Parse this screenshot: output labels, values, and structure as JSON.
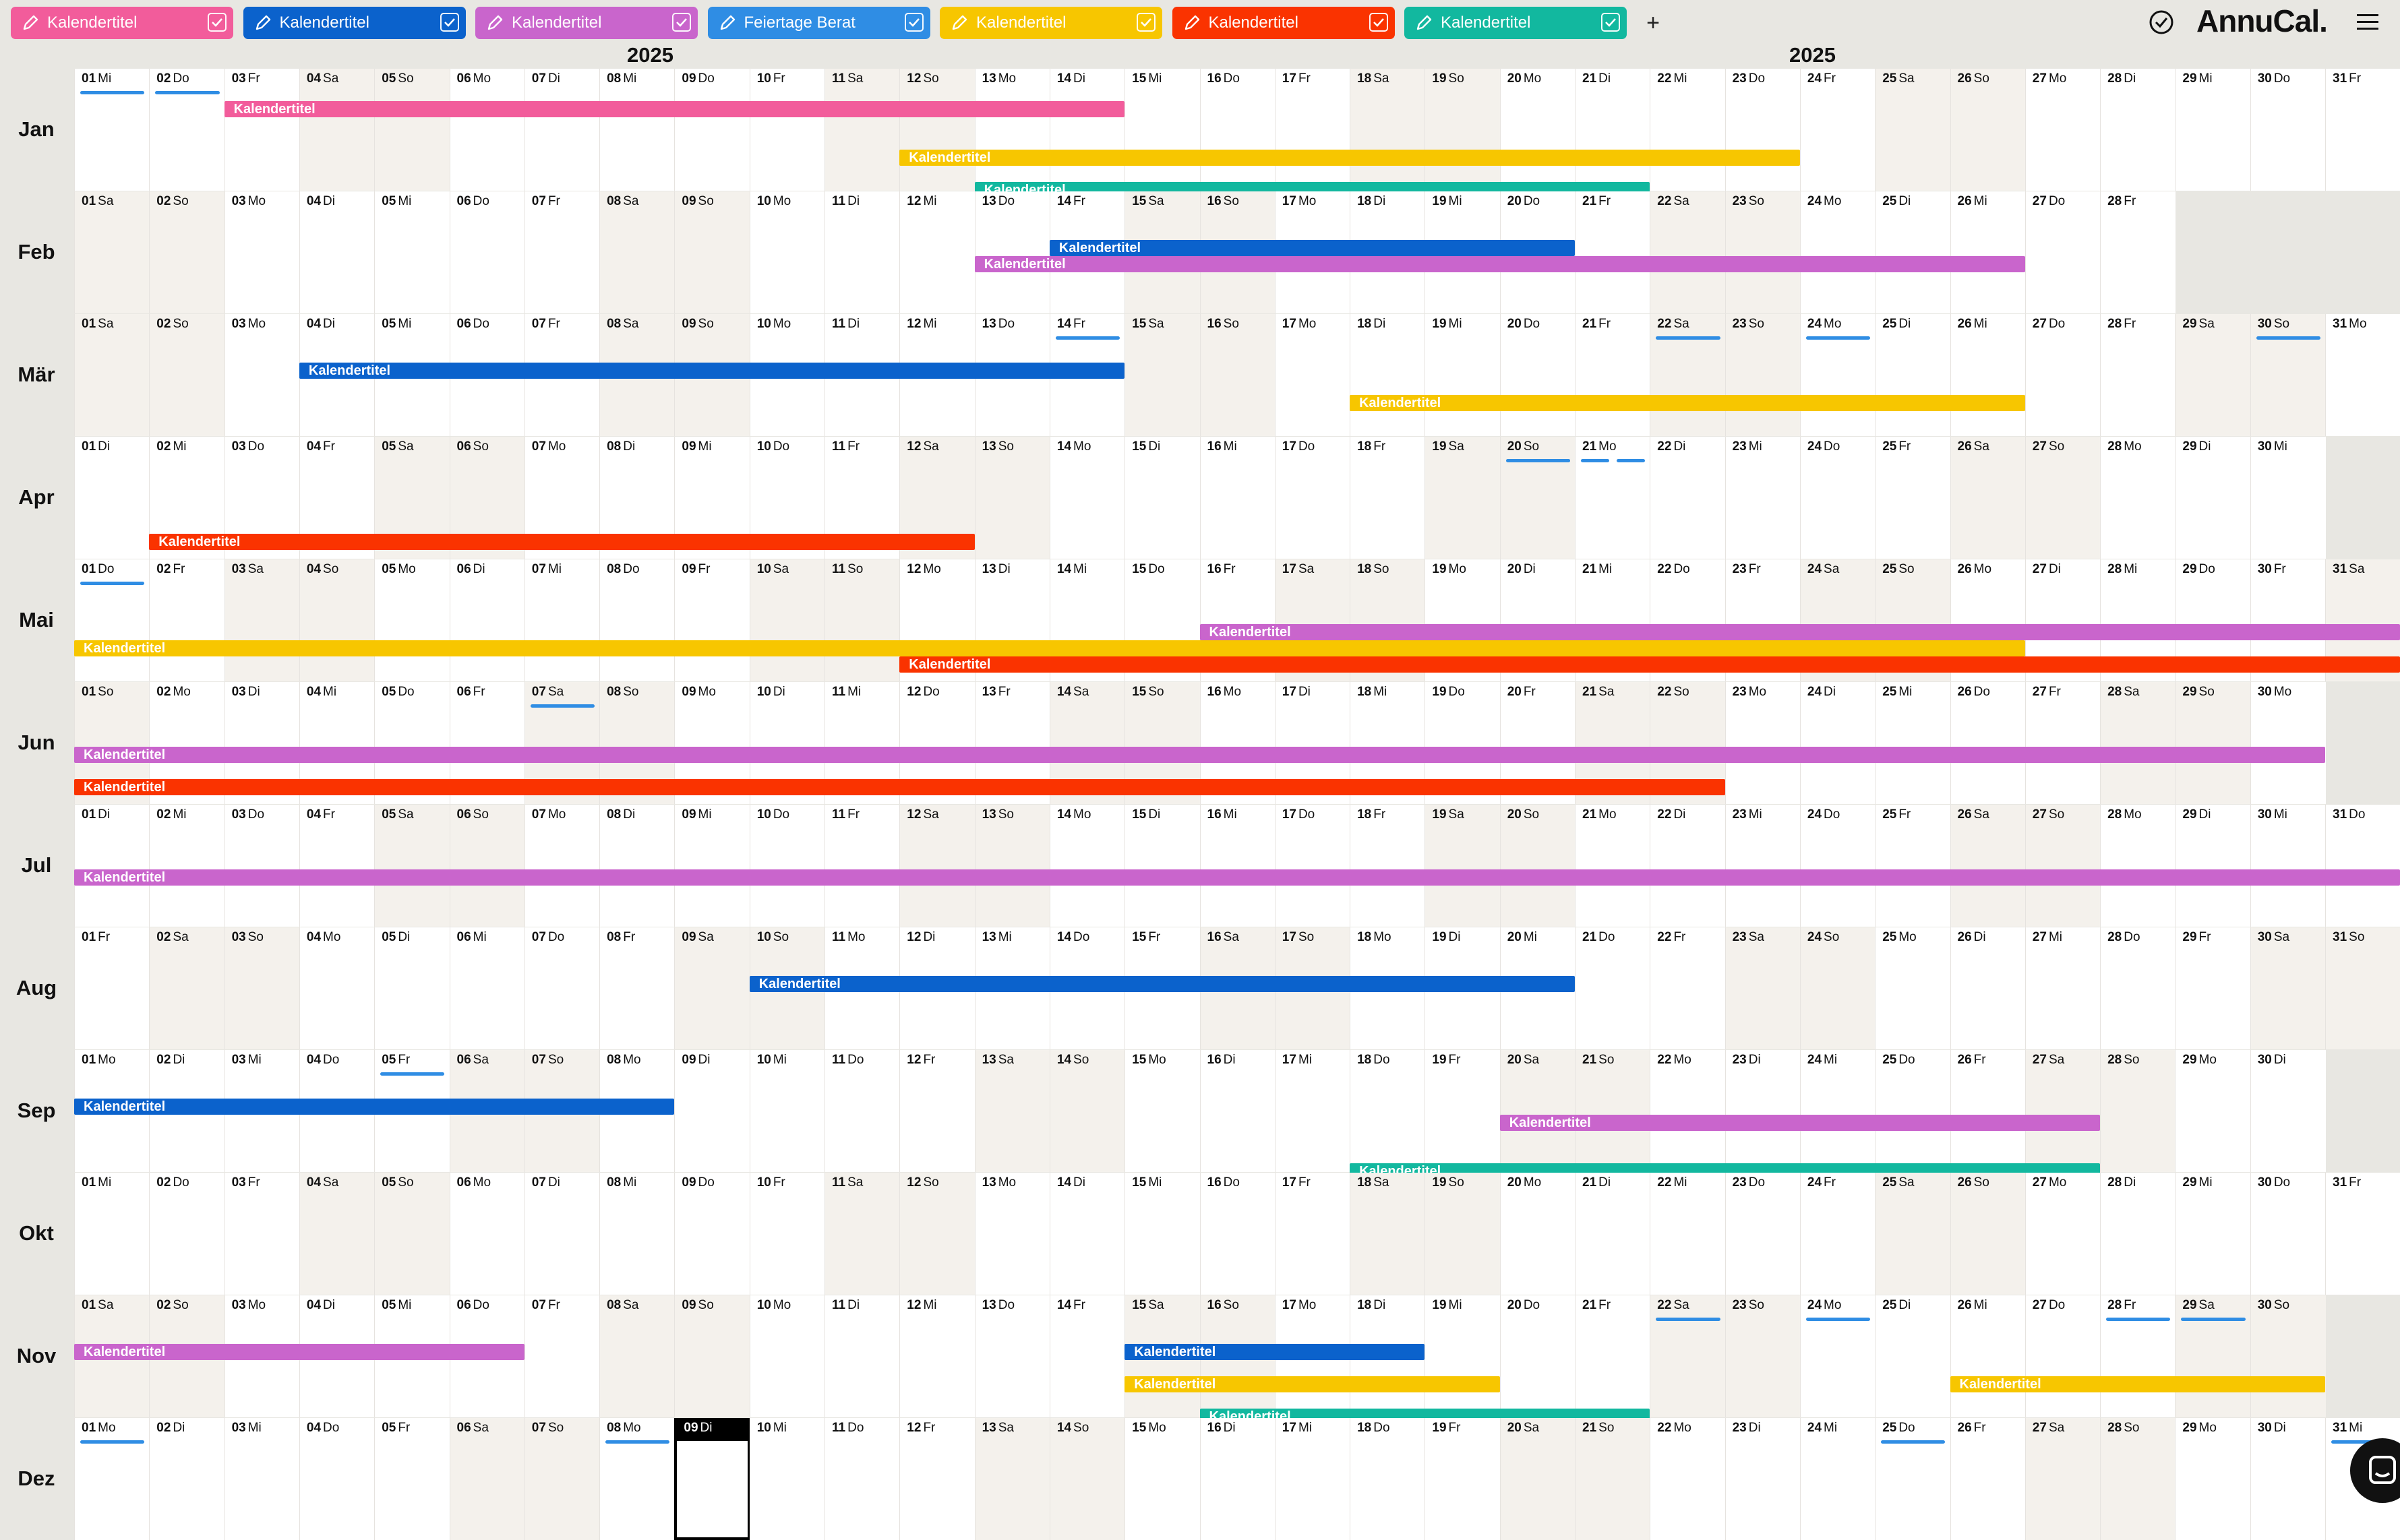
{
  "app": {
    "brand": "AnnuCal."
  },
  "toolbar": {
    "add_label": "+",
    "calendars": [
      {
        "label": "Kalendertitel",
        "color": "#f25c9b",
        "checked": true
      },
      {
        "label": "Kalendertitel",
        "color": "#0b62cc",
        "checked": true
      },
      {
        "label": "Kalendertitel",
        "color": "#c965cc",
        "checked": true
      },
      {
        "label": "Feiertage Berat",
        "color": "#2f8de4",
        "checked": true
      },
      {
        "label": "Kalendertitel",
        "color": "#f7c600",
        "checked": true
      },
      {
        "label": "Kalendertitel",
        "color": "#fa3300",
        "checked": true
      },
      {
        "label": "Kalendertitel",
        "color": "#12b89f",
        "checked": true
      }
    ]
  },
  "year_labels": [
    "2025",
    "2025"
  ],
  "weekdays": [
    "Mo",
    "Di",
    "Mi",
    "Do",
    "Fr",
    "Sa",
    "So"
  ],
  "months": [
    {
      "label": "Jan",
      "start": 2,
      "days": 31,
      "holidays": [
        [
          1,
          "full"
        ],
        [
          2,
          "full"
        ]
      ],
      "events": [
        {
          "label": "Kalendertitel",
          "color": "pink",
          "from": 3,
          "to": 14,
          "lane": 0
        },
        {
          "label": "Kalendertitel",
          "color": "yellow",
          "from": 12,
          "to": 23,
          "lane": 3
        },
        {
          "label": "Kalendertitel",
          "color": "teal",
          "from": 13,
          "to": 21,
          "lane": 5
        }
      ]
    },
    {
      "label": "Feb",
      "start": 5,
      "days": 28,
      "holidays": [],
      "events": [
        {
          "label": "Kalendertitel",
          "color": "blue",
          "from": 14,
          "to": 20,
          "lane": 1
        },
        {
          "label": "Kalendertitel",
          "color": "purple",
          "from": 13,
          "to": 26,
          "lane": 2
        }
      ]
    },
    {
      "label": "Mär",
      "start": 5,
      "days": 31,
      "holidays": [
        [
          14,
          "full"
        ],
        [
          22,
          "full"
        ],
        [
          24,
          "full"
        ],
        [
          30,
          "full"
        ]
      ],
      "events": [
        {
          "label": "Kalendertitel",
          "color": "blue",
          "from": 4,
          "to": 14,
          "lane": 1
        },
        {
          "label": "Kalendertitel",
          "color": "yellow",
          "from": 18,
          "to": 26,
          "lane": 3
        }
      ]
    },
    {
      "label": "Apr",
      "start": 1,
      "days": 30,
      "holidays": [
        [
          20,
          "full"
        ],
        [
          20,
          "half-r"
        ],
        [
          21,
          "half-l"
        ],
        [
          21,
          "half-r"
        ]
      ],
      "events": [
        {
          "label": "Kalendertitel",
          "color": "red",
          "from": 2,
          "to": 12,
          "lane": 4
        }
      ]
    },
    {
      "label": "Mai",
      "start": 3,
      "days": 31,
      "holidays": [
        [
          1,
          "full"
        ]
      ],
      "events": [
        {
          "label": "Kalendertitel",
          "color": "purple",
          "from": 16,
          "to": 31,
          "lane": 2
        },
        {
          "label": "Kalendertitel",
          "color": "yellow",
          "from": 1,
          "to": 26,
          "lane": 3
        },
        {
          "label": "Kalendertitel",
          "color": "red",
          "from": 12,
          "to": 31,
          "lane": 4
        }
      ]
    },
    {
      "label": "Jun",
      "start": 6,
      "days": 30,
      "holidays": [
        [
          7,
          "full"
        ]
      ],
      "events": [
        {
          "label": "Kalendertitel",
          "color": "purple",
          "from": 1,
          "to": 30,
          "lane": 2
        },
        {
          "label": "Kalendertitel",
          "color": "red",
          "from": 1,
          "to": 22,
          "lane": 4
        }
      ]
    },
    {
      "label": "Jul",
      "start": 1,
      "days": 31,
      "holidays": [],
      "events": [
        {
          "label": "Kalendertitel",
          "color": "purple",
          "from": 1,
          "to": 31,
          "lane": 2
        }
      ]
    },
    {
      "label": "Aug",
      "start": 4,
      "days": 31,
      "holidays": [],
      "events": [
        {
          "label": "Kalendertitel",
          "color": "blue",
          "from": 10,
          "to": 20,
          "lane": 1
        }
      ]
    },
    {
      "label": "Sep",
      "start": 0,
      "days": 30,
      "holidays": [
        [
          5,
          "full"
        ]
      ],
      "events": [
        {
          "label": "Kalendertitel",
          "color": "blue",
          "from": 1,
          "to": 8,
          "lane": 1
        },
        {
          "label": "Kalendertitel",
          "color": "purple",
          "from": 20,
          "to": 27,
          "lane": 2
        },
        {
          "label": "Kalendertitel",
          "color": "teal",
          "from": 18,
          "to": 27,
          "lane": 5
        }
      ]
    },
    {
      "label": "Okt",
      "start": 2,
      "days": 31,
      "holidays": [],
      "events": []
    },
    {
      "label": "Nov",
      "start": 5,
      "days": 30,
      "holidays": [
        [
          22,
          "full"
        ],
        [
          24,
          "full"
        ],
        [
          28,
          "full"
        ],
        [
          29,
          "full"
        ]
      ],
      "events": [
        {
          "label": "Kalendertitel",
          "color": "blue",
          "from": 15,
          "to": 18,
          "lane": 1
        },
        {
          "label": "Kalendertitel",
          "color": "yellow",
          "from": 15,
          "to": 19,
          "lane": 3
        },
        {
          "label": "Kalendertitel",
          "color": "yellow",
          "from": 26,
          "to": 30,
          "lane": 3
        },
        {
          "label": "Kalendertitel",
          "color": "teal",
          "from": 16,
          "to": 21,
          "lane": 5
        },
        {
          "label": "Kalendertitel",
          "color": "purple",
          "from": 1,
          "to": 6,
          "lane": 1
        }
      ]
    },
    {
      "label": "Dez",
      "start": 0,
      "days": 31,
      "today": 9,
      "holidays": [
        [
          1,
          "full"
        ],
        [
          8,
          "full"
        ],
        [
          25,
          "full"
        ],
        [
          31,
          "full"
        ]
      ],
      "events": []
    }
  ],
  "colors": {
    "pink": "#f25c9b",
    "blue": "#0b62cc",
    "purple": "#c965cc",
    "yellow": "#f7c600",
    "red": "#fa3300",
    "teal": "#12b89f",
    "holiday": "#2f8de4"
  }
}
